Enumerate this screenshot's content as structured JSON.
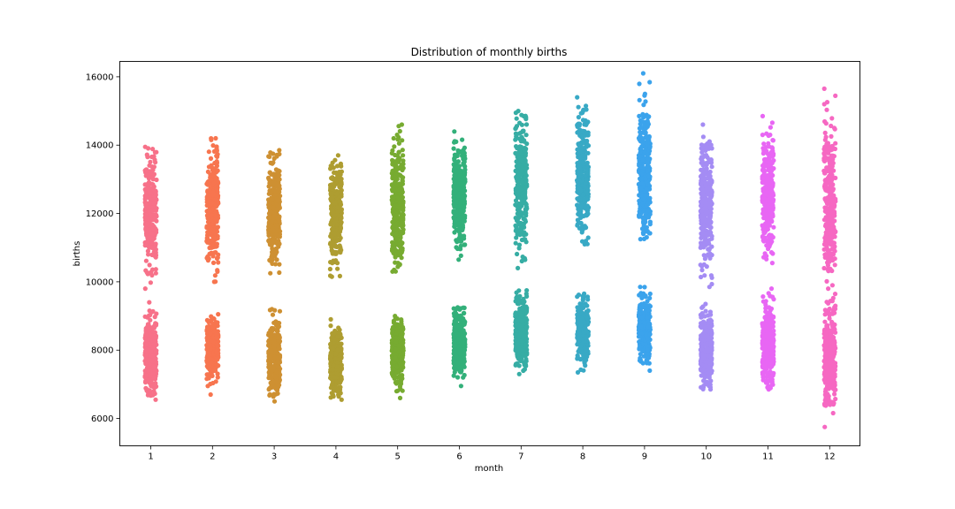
{
  "chart_data": {
    "type": "scatter",
    "subtype": "strip",
    "title": "Distribution of monthly births",
    "xlabel": "month",
    "ylabel": "births",
    "categories": [
      "1",
      "2",
      "3",
      "4",
      "5",
      "6",
      "7",
      "8",
      "9",
      "10",
      "11",
      "12"
    ],
    "ylim": [
      5200,
      16450
    ],
    "yticks": [
      6000,
      8000,
      10000,
      12000,
      14000,
      16000
    ],
    "grid": false,
    "legend": "none",
    "colors": [
      "#f77189",
      "#f7754f",
      "#ce9032",
      "#ae9d31",
      "#77ab31",
      "#33b07a",
      "#36ada4",
      "#38a9c5",
      "#3ba3ec",
      "#a48cf4",
      "#e866f4",
      "#f668c2"
    ],
    "series": [
      {
        "category": "1",
        "clusters": [
          {
            "min": 9800,
            "max": 13950,
            "center": 12000
          },
          {
            "min": 6550,
            "max": 9400,
            "center": 7850
          }
        ]
      },
      {
        "category": "2",
        "clusters": [
          {
            "min": 10000,
            "max": 14200,
            "center": 12250
          },
          {
            "min": 6700,
            "max": 9050,
            "center": 8100
          }
        ]
      },
      {
        "category": "3",
        "clusters": [
          {
            "min": 10250,
            "max": 13850,
            "center": 12100
          },
          {
            "min": 6500,
            "max": 9200,
            "center": 7750
          }
        ]
      },
      {
        "category": "4",
        "clusters": [
          {
            "min": 10150,
            "max": 13700,
            "center": 12000
          },
          {
            "min": 6550,
            "max": 8900,
            "center": 7650
          }
        ]
      },
      {
        "category": "5",
        "clusters": [
          {
            "min": 10300,
            "max": 14600,
            "center": 12350
          },
          {
            "min": 6600,
            "max": 9000,
            "center": 7900
          }
        ]
      },
      {
        "category": "6",
        "clusters": [
          {
            "min": 10650,
            "max": 14400,
            "center": 12600
          },
          {
            "min": 6950,
            "max": 9250,
            "center": 8250
          }
        ]
      },
      {
        "category": "7",
        "clusters": [
          {
            "min": 10400,
            "max": 15000,
            "center": 12900
          },
          {
            "min": 7300,
            "max": 9750,
            "center": 8550
          }
        ]
      },
      {
        "category": "8",
        "clusters": [
          {
            "min": 11100,
            "max": 15400,
            "center": 13150
          },
          {
            "min": 7350,
            "max": 9650,
            "center": 8500
          }
        ]
      },
      {
        "category": "9",
        "clusters": [
          {
            "min": 11250,
            "max": 16100,
            "center": 13200
          },
          {
            "min": 7400,
            "max": 9850,
            "center": 8650
          }
        ]
      },
      {
        "category": "10",
        "clusters": [
          {
            "min": 9850,
            "max": 14600,
            "center": 12300
          },
          {
            "min": 6850,
            "max": 9350,
            "center": 8000
          }
        ]
      },
      {
        "category": "11",
        "clusters": [
          {
            "min": 10550,
            "max": 14850,
            "center": 12500
          },
          {
            "min": 6850,
            "max": 9800,
            "center": 8100
          }
        ]
      },
      {
        "category": "12",
        "clusters": [
          {
            "min": 9900,
            "max": 15650,
            "center": 12400
          },
          {
            "min": 5750,
            "max": 9800,
            "center": 7700
          }
        ]
      }
    ]
  }
}
